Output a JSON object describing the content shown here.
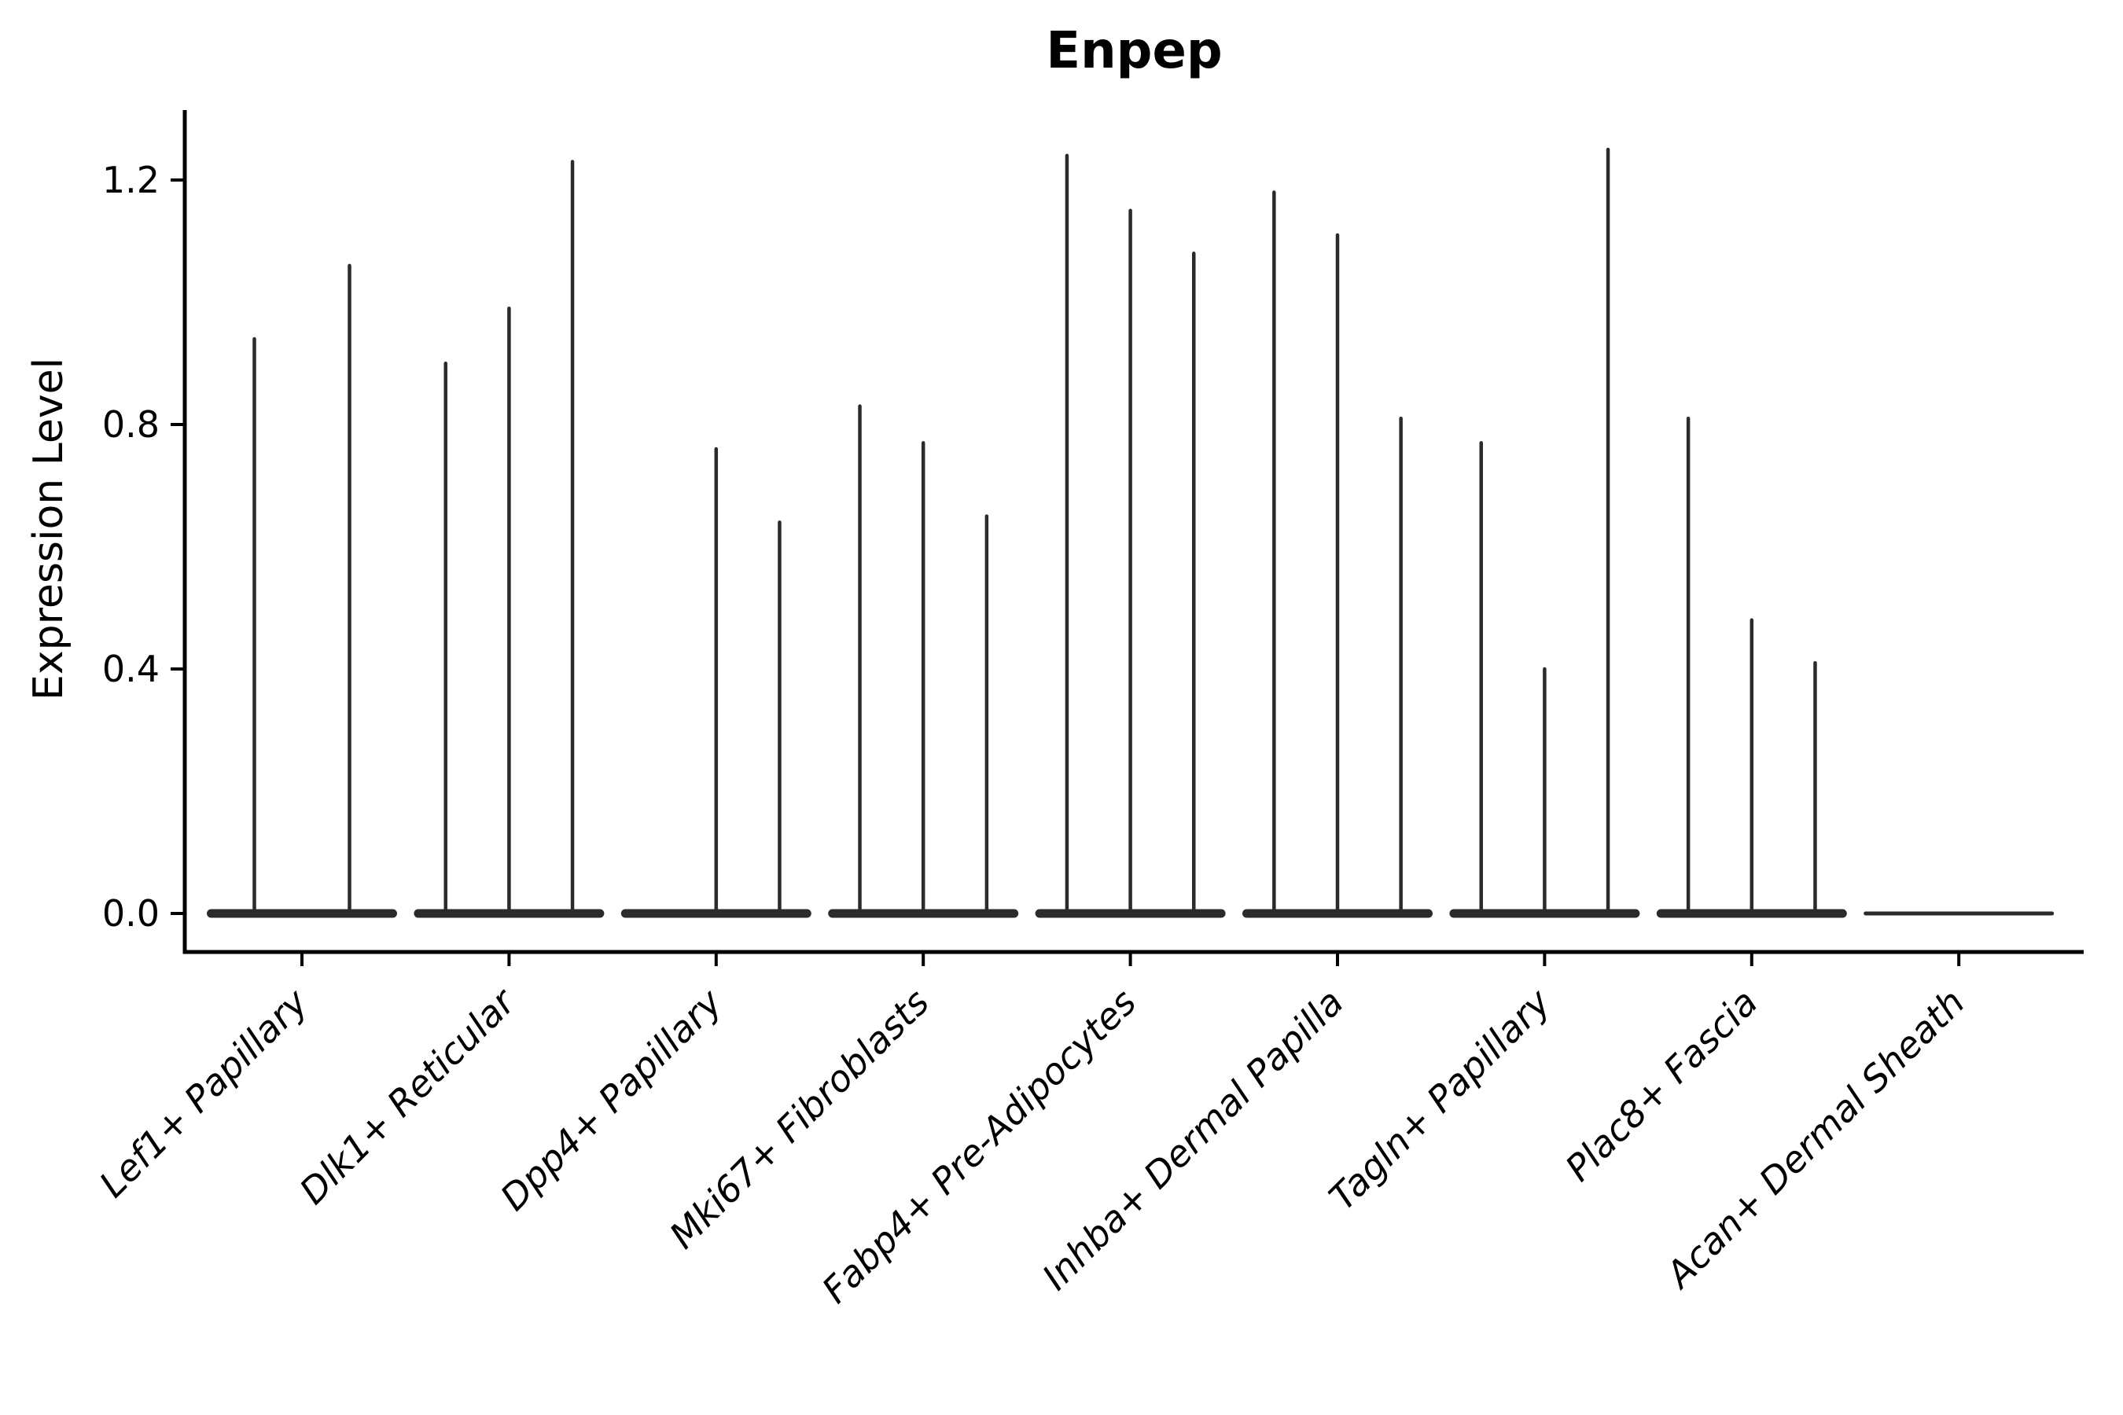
{
  "figure": {
    "title": "Enpep",
    "y_axis_label": "Expression Level"
  },
  "chart_data": {
    "type": "violin",
    "title": "Enpep",
    "xlabel": "",
    "ylabel": "Expression Level",
    "ylim": [
      -0.06,
      1.31
    ],
    "grid": false,
    "legend": "none",
    "x_tick_label_style": "italic, rotated 45 degrees, anchored top-right",
    "yticks": [
      {
        "value": 0.0,
        "label": "0.0"
      },
      {
        "value": 0.4,
        "label": "0.4"
      },
      {
        "value": 0.8,
        "label": "0.8"
      },
      {
        "value": 1.2,
        "label": "1.2"
      }
    ],
    "categories": [
      {
        "label": "Lef1+ Papillary",
        "violin_slots": 2,
        "baseline": "full",
        "violins": [
          {
            "slot": 0,
            "max": 0.94
          },
          {
            "slot": 1,
            "max": 1.06
          }
        ]
      },
      {
        "label": "Dlk1+ Reticular",
        "violin_slots": 3,
        "baseline": "full",
        "violins": [
          {
            "slot": 0,
            "max": 0.9
          },
          {
            "slot": 1,
            "max": 0.99
          },
          {
            "slot": 2,
            "max": 1.23
          }
        ]
      },
      {
        "label": "Dpp4+ Papillary",
        "violin_slots": 3,
        "baseline": "full",
        "violins": [
          {
            "slot": 1,
            "max": 0.76
          },
          {
            "slot": 2,
            "max": 0.64
          }
        ]
      },
      {
        "label": "Mki67+ Fibroblasts",
        "violin_slots": 3,
        "baseline": "full",
        "violins": [
          {
            "slot": 0,
            "max": 0.83
          },
          {
            "slot": 1,
            "max": 0.77
          },
          {
            "slot": 2,
            "max": 0.65
          }
        ]
      },
      {
        "label": "Fabp4+ Pre-Adipocytes",
        "violin_slots": 3,
        "baseline": "full",
        "violins": [
          {
            "slot": 0,
            "max": 1.24
          },
          {
            "slot": 1,
            "max": 1.15
          },
          {
            "slot": 2,
            "max": 1.08
          }
        ]
      },
      {
        "label": "Inhba+ Dermal Papilla",
        "violin_slots": 3,
        "baseline": "full",
        "violins": [
          {
            "slot": 0,
            "max": 1.18
          },
          {
            "slot": 1,
            "max": 1.11
          },
          {
            "slot": 2,
            "max": 0.81
          }
        ]
      },
      {
        "label": "Tagln+ Papillary",
        "violin_slots": 3,
        "baseline": "full",
        "violins": [
          {
            "slot": 0,
            "max": 0.77
          },
          {
            "slot": 1,
            "max": 0.4
          },
          {
            "slot": 2,
            "max": 1.25
          }
        ]
      },
      {
        "label": "Plac8+ Fascia",
        "violin_slots": 3,
        "baseline": "full",
        "violins": [
          {
            "slot": 0,
            "max": 0.81
          },
          {
            "slot": 1,
            "max": 0.48
          },
          {
            "slot": 2,
            "max": 0.41
          }
        ]
      },
      {
        "label": "Acan+ Dermal Sheath",
        "violin_slots": 3,
        "baseline": "thin",
        "violins": []
      }
    ],
    "colors": {
      "violin_stroke": "#2b2b2b",
      "axis": "#000000",
      "text": "#000000",
      "background": "#ffffff"
    }
  }
}
